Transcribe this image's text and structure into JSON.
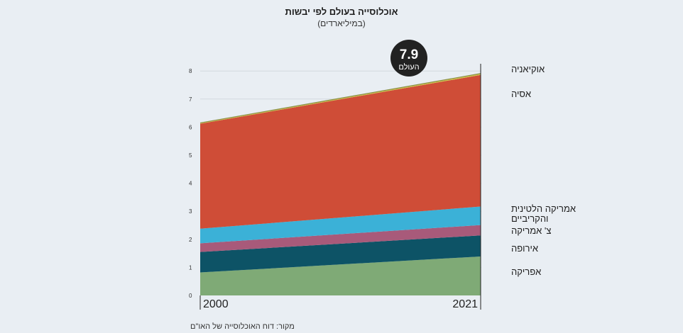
{
  "title": "אוכלוסייה בעולם לפי יבשות",
  "subtitle": "(במיליארדים)",
  "source": "מקור: דוח האוכלוסייה של האו\"ם",
  "colors": {
    "background": "#e9eef3",
    "africa": "#7faa76",
    "europe": "#0d5366",
    "north_america": "#a85a7a",
    "latin_america": "#3bb1d7",
    "asia": "#cf4d37",
    "oceania": "#cfc24a",
    "badge": "#222222"
  },
  "chart_data": {
    "type": "area",
    "stacked": true,
    "title": "אוכלוסייה בעולם לפי יבשות",
    "subtitle": "(במיליארדים)",
    "x": [
      "2000",
      "2021"
    ],
    "ylim": [
      0,
      8
    ],
    "yticks": [
      "0",
      "1",
      "2",
      "3",
      "4",
      "5",
      "6",
      "7",
      "8"
    ],
    "grid": true,
    "series": [
      {
        "name": "אפריקה",
        "values": [
          0.82,
          1.39
        ]
      },
      {
        "name": "אירופה",
        "values": [
          0.73,
          0.75
        ]
      },
      {
        "name": "צ' אמריקה",
        "values": [
          0.31,
          0.37
        ]
      },
      {
        "name": "אמריקה הלטינית והקריביים",
        "values": [
          0.52,
          0.66
        ]
      },
      {
        "name": "אסיה",
        "values": [
          3.74,
          4.69
        ]
      },
      {
        "name": "אוקיאניה",
        "values": [
          0.03,
          0.05
        ]
      }
    ],
    "series_labels": [
      {
        "series": "אוקיאניה",
        "lines": [
          "אוקיאניה"
        ]
      },
      {
        "series": "אסיה",
        "lines": [
          "אסיה"
        ]
      },
      {
        "series": "אמריקה הלטינית והקריביים",
        "lines": [
          "אמריקה הלטינית",
          "והקריביים"
        ]
      },
      {
        "series": "צ' אמריקה",
        "lines": [
          "צ' אמריקה"
        ]
      },
      {
        "series": "אירופה",
        "lines": [
          "אירופה"
        ]
      },
      {
        "series": "אפריקה",
        "lines": [
          "אפריקה"
        ]
      }
    ],
    "total_badge": {
      "value": "7.9",
      "label": "העולם"
    }
  }
}
